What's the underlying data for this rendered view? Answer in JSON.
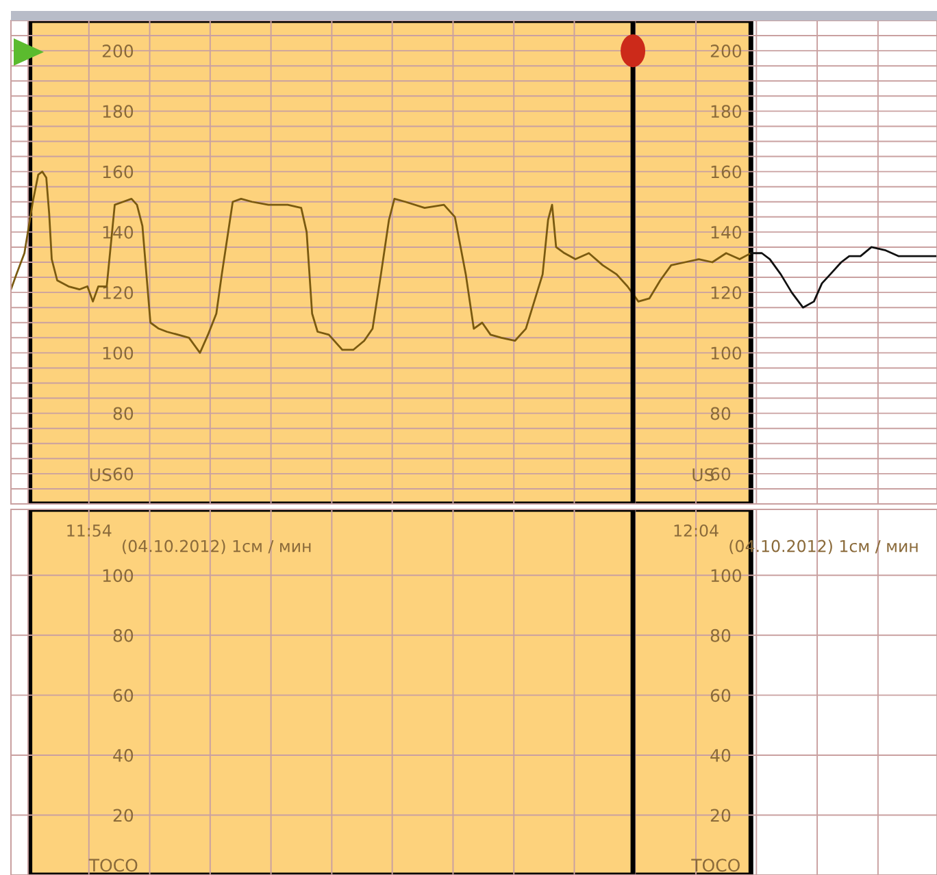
{
  "chart_data": [
    {
      "type": "line",
      "xlim": [
        11.8786,
        12.1329
      ],
      "ylim": [
        50,
        210
      ],
      "tick_labels": "y",
      "grid": true,
      "ylabel": "US",
      "y2label": "US",
      "y2lim": [
        50,
        210
      ],
      "xticks": [
        {
          "value": 11.8833,
          "label": null
        },
        {
          "value": 11.9,
          "label": null
        },
        {
          "value": 11.9167,
          "label": null
        },
        {
          "value": 11.9333,
          "label": null
        },
        {
          "value": 11.95,
          "label": null
        },
        {
          "value": 11.9667,
          "label": null
        },
        {
          "value": 11.9833,
          "label": null
        },
        {
          "value": 12.0,
          "label": null
        },
        {
          "value": 12.0167,
          "label": null
        },
        {
          "value": 12.0333,
          "label": null
        },
        {
          "value": 12.05,
          "label": null
        },
        {
          "value": 12.0667,
          "label": null
        },
        {
          "value": 12.0833,
          "label": null
        },
        {
          "value": 12.1,
          "label": null
        },
        {
          "value": 12.1167,
          "label": null
        }
      ],
      "yticks": [
        {
          "value": 55,
          "label": null
        },
        60,
        {
          "value": 65,
          "label": null
        },
        {
          "value": 70,
          "label": null
        },
        {
          "value": 75,
          "label": null
        },
        80,
        {
          "value": 85,
          "label": null
        },
        {
          "value": 90,
          "label": null
        },
        {
          "value": 95,
          "label": null
        },
        100,
        {
          "value": 105,
          "label": null
        },
        {
          "value": 110,
          "label": null
        },
        {
          "value": 115,
          "label": null
        },
        120,
        {
          "value": 125,
          "label": null
        },
        {
          "value": 130,
          "label": null
        },
        {
          "value": 135,
          "label": null
        },
        140,
        {
          "value": 145,
          "label": null
        },
        {
          "value": 150,
          "label": null
        },
        {
          "value": 155,
          "label": null
        },
        160,
        {
          "value": 165,
          "label": null
        },
        {
          "value": 170,
          "label": null
        },
        {
          "value": 175,
          "label": null
        },
        180,
        {
          "value": 185,
          "label": null
        },
        {
          "value": 190,
          "label": null
        },
        {
          "value": 195,
          "label": null
        },
        200,
        {
          "value": 205,
          "label": null
        }
      ],
      "y2ticks": [
        60,
        80,
        100,
        120,
        140,
        160,
        180,
        200
      ],
      "bands": [
        {
          "axis": "x",
          "from": 11.8838,
          "to": 12.0818,
          "color": "#fdd27c"
        }
      ],
      "ref_lines": [
        {
          "axis": "x",
          "value": 12.0494,
          "color": "#000000"
        }
      ],
      "series": [
        {
          "color": "#7a5a10",
          "x": [
            11.8786,
            11.8801,
            11.8823,
            11.8846,
            11.8861,
            11.8872,
            11.8883,
            11.8891,
            11.8898,
            11.8913,
            11.8944,
            11.8974,
            11.8996,
            11.9011,
            11.9026,
            11.9049,
            11.9071,
            11.9094,
            11.9117,
            11.9132,
            11.9147,
            11.9169,
            11.9192,
            11.9214,
            11.9245,
            11.9275,
            11.9305,
            11.9327,
            11.935,
            11.9365,
            11.938,
            11.9395,
            11.9418,
            11.9448,
            11.9493,
            11.9546,
            11.9583,
            11.9598,
            11.9613,
            11.9628,
            11.9659,
            11.9696,
            11.9726,
            11.9756,
            11.9779,
            11.9802,
            11.9824,
            11.9839,
            11.9869,
            11.9922,
            11.9975,
            12.0005,
            12.0035,
            12.0057,
            12.008,
            12.0103,
            12.0133,
            12.017,
            12.02,
            12.0223,
            12.0246,
            12.0261,
            12.0272,
            12.0283,
            12.0306,
            12.0336,
            12.0373,
            12.0411,
            12.0449,
            12.0479,
            12.0509,
            12.0539,
            12.0569,
            12.0599,
            12.0637,
            12.0675,
            12.0712,
            12.075,
            12.0787,
            12.0818
          ],
          "values": [
            121,
            126,
            133,
            150,
            159,
            160,
            158,
            146,
            131,
            124,
            122,
            121,
            122,
            117,
            122,
            122,
            149,
            150,
            151,
            149,
            142,
            110,
            108,
            107,
            106,
            105,
            100,
            106,
            113,
            126,
            138,
            150,
            151,
            150,
            149,
            149,
            148,
            140,
            113,
            107,
            106,
            101,
            101,
            104,
            108,
            126,
            144,
            151,
            150,
            148,
            149,
            145,
            126,
            108,
            110,
            106,
            105,
            104,
            108,
            117,
            126,
            144,
            149,
            135,
            133,
            131,
            133,
            129,
            126,
            122,
            117,
            118,
            124,
            129,
            130,
            131,
            130,
            133,
            131,
            133
          ]
        },
        {
          "color": "#111111",
          "x": [
            12.0818,
            12.0848,
            12.087,
            12.09,
            12.093,
            12.0961,
            12.0991,
            12.1013,
            12.1036,
            12.1066,
            12.1088,
            12.1119,
            12.1149,
            12.1186,
            12.1224,
            12.1262,
            12.1299,
            12.1329
          ],
          "values": [
            133,
            133,
            131,
            126,
            120,
            115,
            117,
            123,
            126,
            130,
            132,
            132,
            135,
            134,
            132,
            132,
            132,
            132
          ]
        }
      ]
    },
    {
      "type": "line",
      "xlim": [
        11.8786,
        12.1329
      ],
      "ylim": [
        0,
        122
      ],
      "grid": true,
      "ylabel": "TOCO",
      "y2label": "TOCO",
      "y2lim": [
        0,
        122
      ],
      "xticks": [
        {
          "value": 11.8833,
          "label": null
        },
        {
          "value": 11.9,
          "label": "11:54"
        },
        {
          "value": 11.9167,
          "label": null
        },
        {
          "value": 11.9333,
          "label": null
        },
        {
          "value": 11.95,
          "label": null
        },
        {
          "value": 11.9667,
          "label": null
        },
        {
          "value": 11.9833,
          "label": null
        },
        {
          "value": 12.0,
          "label": null
        },
        {
          "value": 12.0167,
          "label": null
        },
        {
          "value": 12.0333,
          "label": null
        },
        {
          "value": 12.05,
          "label": null
        },
        {
          "value": 12.0667,
          "label": "12:04"
        },
        {
          "value": 12.0833,
          "label": null
        },
        {
          "value": 12.1,
          "label": null
        },
        {
          "value": 12.1167,
          "label": null
        }
      ],
      "yticks": [
        20,
        40,
        60,
        80,
        100
      ],
      "y2ticks": [
        20,
        40,
        60,
        80,
        100
      ],
      "annotations": [
        "(04.10.2012) 1см / мин",
        "(04.10.2012) 1см / мин"
      ],
      "bands": [
        {
          "axis": "x",
          "from": 11.8838,
          "to": 12.0818,
          "color": "#fdd27c"
        }
      ],
      "ref_lines": [
        {
          "axis": "x",
          "value": 12.0494,
          "color": "#000000"
        }
      ]
    }
  ]
}
